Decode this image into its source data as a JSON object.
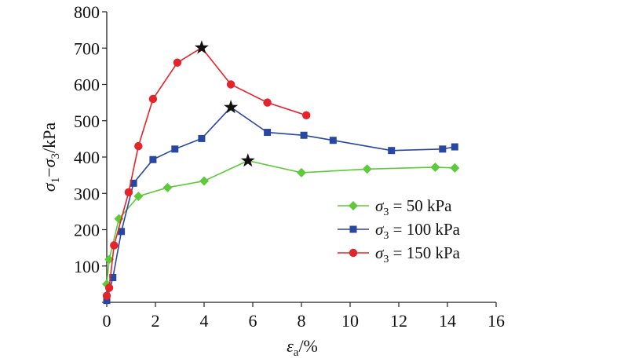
{
  "chart_data": {
    "type": "line",
    "xlabel": {
      "sym": "ε",
      "sub": "a",
      "unit": "/%"
    },
    "ylabel": {
      "s1": "σ",
      "sub1": "1",
      "dash": "−",
      "s3": "σ",
      "sub3": "3",
      "unit": "/kPa"
    },
    "xlim": [
      0,
      16
    ],
    "ylim": [
      0,
      800
    ],
    "xticks": [
      "0",
      "2",
      "4",
      "6",
      "8",
      "10",
      "12",
      "14",
      "16"
    ],
    "yticks": [
      "100",
      "200",
      "300",
      "400",
      "500",
      "600",
      "700",
      "800"
    ],
    "grid": false,
    "legend_position": "right",
    "series": [
      {
        "name": "σ3 = 50 kPa",
        "legend": {
          "sym": "σ",
          "sub": "3",
          "rest": " = 50 kPa"
        },
        "color": "#5ec93a",
        "marker": "diamond",
        "x": [
          0.0,
          0.1,
          0.5,
          1.3,
          2.5,
          4.0,
          5.8,
          8.0,
          10.7,
          13.5,
          14.3
        ],
        "y": [
          50,
          118,
          230,
          292,
          316,
          334,
          390,
          357,
          367,
          372,
          370
        ],
        "peak": [
          5.8,
          390
        ]
      },
      {
        "name": "σ3 = 100 kPa",
        "legend": {
          "sym": "σ",
          "sub": "3",
          "rest": " = 100 kPa"
        },
        "color": "#2847a0",
        "marker": "square",
        "x": [
          0.0,
          0.25,
          0.6,
          1.1,
          1.9,
          2.8,
          3.9,
          5.1,
          6.6,
          8.1,
          9.3,
          11.7,
          13.8,
          14.3
        ],
        "y": [
          5,
          68,
          195,
          328,
          393,
          422,
          451,
          537,
          468,
          460,
          446,
          418,
          422,
          428
        ],
        "peak": [
          5.1,
          537
        ]
      },
      {
        "name": "σ3 = 150 kPa",
        "legend": {
          "sym": "σ",
          "sub": "3",
          "rest": " = 150 kPa"
        },
        "color": "#e5232b",
        "marker": "circle",
        "x": [
          0.0,
          0.1,
          0.3,
          0.9,
          1.3,
          1.9,
          2.9,
          3.9,
          5.1,
          6.6,
          8.2
        ],
        "y": [
          18,
          40,
          157,
          303,
          430,
          560,
          660,
          701,
          600,
          550,
          515
        ],
        "peak": [
          3.9,
          701
        ]
      }
    ]
  }
}
